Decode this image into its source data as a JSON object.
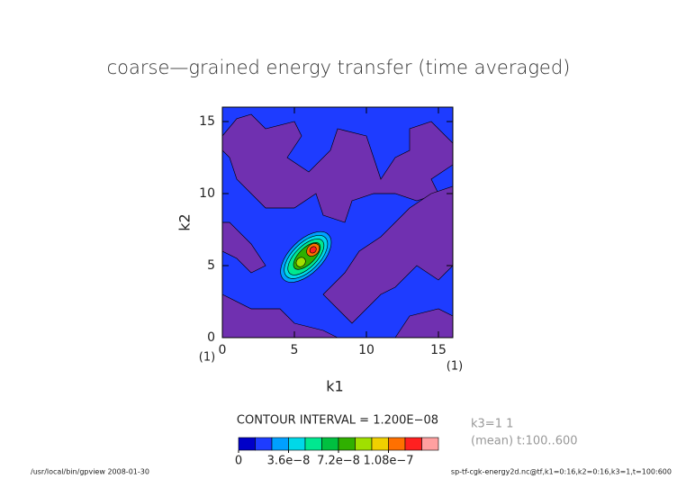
{
  "chart_data": {
    "type": "contour",
    "title": "coarse—grained energy transfer (time averaged)",
    "x_label": "k1",
    "y_label": "k2",
    "xlim": [
      0,
      16
    ],
    "ylim": [
      0,
      16
    ],
    "xticks": [
      0,
      5,
      10,
      15
    ],
    "yticks": [
      0,
      5,
      10,
      15
    ],
    "corner_labels": [
      "(1)",
      "(1)"
    ],
    "contour_interval": "CONTOUR INTERVAL = 1.200E−08",
    "notes": [
      "k3=1 1",
      "(mean) t:100..600"
    ],
    "footer_left": "/usr/local/bin/gpview  2008-01-30",
    "footer_right": "sp-tf-cgk-energy2d.nc@tf,k1=0:16,k2=0:16,k3=1,t=100:600",
    "colorbar": {
      "levels": [
        0,
        1.2e-08,
        2.4e-08,
        3.6e-08,
        4.8e-08,
        6e-08,
        7.2e-08,
        8.4e-08,
        9.6e-08,
        1.08e-07,
        1.2e-07,
        1.32e-07
      ],
      "colors": [
        "#0000c8",
        "#1e3cff",
        "#00a0ff",
        "#00d8e8",
        "#00e890",
        "#00c040",
        "#30b000",
        "#a0e000",
        "#f0d000",
        "#ff7000",
        "#ff2020",
        "#ffa0a0"
      ],
      "ticks": [
        {
          "value": 0,
          "label": "0"
        },
        {
          "value": 3.6e-08,
          "label": "3.6e−8"
        },
        {
          "value": 7.2e-08,
          "label": "7.2e−8"
        },
        {
          "value": 1.08e-07,
          "label": "1.08e−7"
        }
      ]
    }
  }
}
